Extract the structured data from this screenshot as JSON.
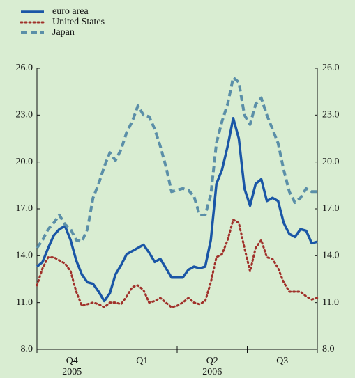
{
  "chart_data": {
    "type": "line",
    "x": [
      0,
      1,
      2,
      3,
      4,
      5,
      6,
      7,
      8,
      9,
      10,
      11,
      12,
      13,
      14,
      15,
      16,
      17,
      18,
      19,
      20,
      21,
      22,
      23,
      24,
      25,
      26,
      27,
      28,
      29,
      30,
      31,
      32,
      33,
      34,
      35,
      36,
      37,
      38,
      39,
      40,
      41,
      42,
      43,
      44,
      45,
      46,
      47,
      48,
      49,
      50
    ],
    "xlim": [
      0,
      50
    ],
    "xticks": [
      0,
      12.5,
      25,
      37.5,
      50
    ],
    "categories": [
      "Q4",
      "Q1",
      "Q2",
      "Q3"
    ],
    "years": [
      "2005",
      null,
      "2006",
      null
    ],
    "ylim": [
      8,
      26
    ],
    "yticks": [
      {
        "value": 8,
        "label": "8.0"
      },
      {
        "value": 11,
        "label": "11.0"
      },
      {
        "value": 14,
        "label": "14.0"
      },
      {
        "value": 17,
        "label": "17.0"
      },
      {
        "value": 20,
        "label": "20.0"
      },
      {
        "value": 23,
        "label": "23.0"
      },
      {
        "value": 26,
        "label": "26.0"
      }
    ],
    "y2lim": [
      8,
      26
    ],
    "y2ticks": [
      {
        "value": 8,
        "label": "8.0"
      },
      {
        "value": 11,
        "label": "11.0"
      },
      {
        "value": 14,
        "label": "14.0"
      },
      {
        "value": 17,
        "label": "17.0"
      },
      {
        "value": 20,
        "label": "20.0"
      },
      {
        "value": 23,
        "label": "23.0"
      },
      {
        "value": 26,
        "label": "26.0"
      }
    ],
    "series": [
      {
        "name": "euro area",
        "color": "#1a56a6",
        "style": "solid",
        "values": [
          13.3,
          13.6,
          14.5,
          15.3,
          15.7,
          15.9,
          15.0,
          13.7,
          12.8,
          12.3,
          12.2,
          11.7,
          11.1,
          11.6,
          12.8,
          13.4,
          14.1,
          14.3,
          14.5,
          14.7,
          14.2,
          13.6,
          13.8,
          13.2,
          12.6,
          12.6,
          12.6,
          13.1,
          13.3,
          13.2,
          13.3,
          15.0,
          18.6,
          19.5,
          21.0,
          22.8,
          21.5,
          18.3,
          17.2,
          18.6,
          18.9,
          17.5,
          17.7,
          17.5,
          16.1,
          15.4,
          15.2,
          15.7,
          15.6,
          14.8,
          14.9
        ]
      },
      {
        "name": "United States",
        "color": "#a0312a",
        "style": "dotted",
        "values": [
          12.1,
          13.2,
          13.9,
          13.9,
          13.7,
          13.5,
          13.0,
          11.7,
          10.8,
          10.9,
          11.0,
          10.9,
          10.7,
          11.0,
          11.0,
          10.9,
          11.4,
          12.0,
          12.1,
          11.8,
          11.0,
          11.1,
          11.3,
          11.0,
          10.7,
          10.8,
          11.0,
          11.3,
          11.0,
          10.9,
          11.1,
          12.3,
          13.9,
          14.1,
          15.0,
          16.3,
          16.1,
          14.5,
          13.0,
          14.5,
          15.0,
          13.9,
          13.8,
          13.2,
          12.3,
          11.7,
          11.7,
          11.7,
          11.4,
          11.2,
          11.3
        ]
      },
      {
        "name": "Japan",
        "color": "#5b8fa8",
        "style": "dashed",
        "values": [
          14.5,
          15.0,
          15.7,
          16.1,
          16.6,
          16.0,
          15.7,
          15.0,
          14.9,
          15.7,
          17.7,
          18.6,
          19.7,
          20.6,
          20.1,
          20.8,
          21.9,
          22.6,
          23.6,
          23.0,
          22.9,
          22.1,
          21.0,
          19.7,
          18.1,
          18.2,
          18.3,
          18.2,
          17.8,
          16.6,
          16.6,
          17.9,
          21.2,
          22.6,
          23.7,
          25.4,
          25.1,
          23.0,
          22.4,
          23.7,
          24.1,
          23.0,
          22.1,
          21.2,
          19.5,
          18.1,
          17.4,
          17.7,
          18.3,
          18.1,
          18.1
        ]
      }
    ]
  }
}
